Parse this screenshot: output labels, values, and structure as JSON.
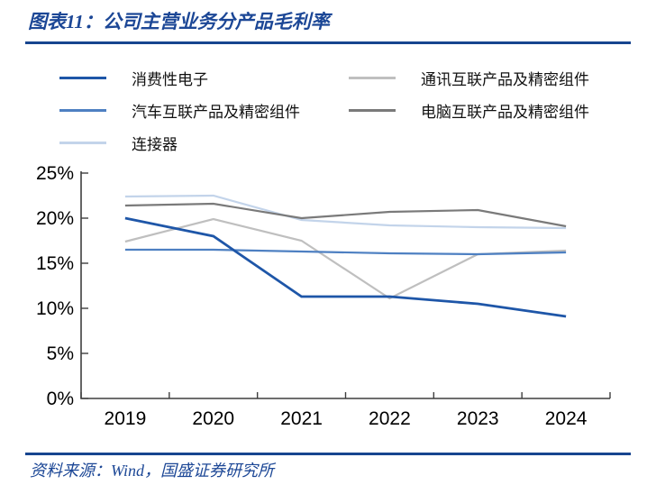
{
  "header": {
    "title": "图表11：公司主营业务分产品毛利率"
  },
  "footer": {
    "source": "资料来源：Wind，国盛证券研究所"
  },
  "colors": {
    "accent_rule": "#17458F",
    "title_text": "#1C4796",
    "axis": "#3F3F3F",
    "tick_text": "#000000"
  },
  "chart_data": {
    "type": "line",
    "title": "图表11：公司主营业务分产品毛利率",
    "xlabel": "",
    "ylabel": "",
    "x": [
      "2019",
      "2020",
      "2021",
      "2022",
      "2023",
      "2024"
    ],
    "ylim": [
      0,
      25
    ],
    "ytick_step": 5,
    "ytick_labels": [
      "0%",
      "5%",
      "10%",
      "15%",
      "20%",
      "25%"
    ],
    "grid": false,
    "legend_position": "top",
    "series": [
      {
        "name": "消费性电子",
        "color": "#1E56A8",
        "values": [
          20.0,
          18.0,
          11.3,
          11.3,
          10.5,
          9.1
        ]
      },
      {
        "name": "通讯互联产品及精密组件",
        "color": "#BFBFBF",
        "values": [
          17.4,
          19.9,
          17.5,
          11.1,
          16.0,
          16.4
        ]
      },
      {
        "name": "汽车互联产品及精密组件",
        "color": "#4E80C2",
        "values": [
          16.5,
          16.5,
          16.3,
          16.1,
          16.0,
          16.2
        ]
      },
      {
        "name": "电脑互联产品及精密组件",
        "color": "#7A7A7A",
        "values": [
          21.4,
          21.6,
          20.0,
          20.7,
          20.9,
          19.1
        ]
      },
      {
        "name": "连接器",
        "color": "#C3D4EA",
        "values": [
          22.4,
          22.5,
          19.8,
          19.2,
          19.0,
          18.9
        ]
      }
    ]
  }
}
